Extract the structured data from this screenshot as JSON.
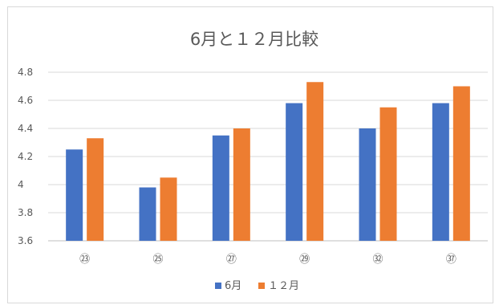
{
  "chart_data": {
    "type": "bar",
    "title": "6月と１２月比較",
    "categories": [
      "㉓",
      "㉕",
      "㉗",
      "㉙",
      "㉜",
      "㊲"
    ],
    "series": [
      {
        "name": "6月",
        "values": [
          4.25,
          3.98,
          4.35,
          4.58,
          4.4,
          4.58
        ],
        "color": "#4472c4"
      },
      {
        "name": "１２月",
        "values": [
          4.33,
          4.05,
          4.4,
          4.73,
          4.55,
          4.7
        ],
        "color": "#ed7d31"
      }
    ],
    "ylim": [
      3.6,
      4.8
    ],
    "yticks": [
      "3.6",
      "3.8",
      "4",
      "4.2",
      "4.4",
      "4.6",
      "4.8"
    ],
    "grid": true,
    "legend_position": "bottom",
    "xlabel": "",
    "ylabel": ""
  }
}
